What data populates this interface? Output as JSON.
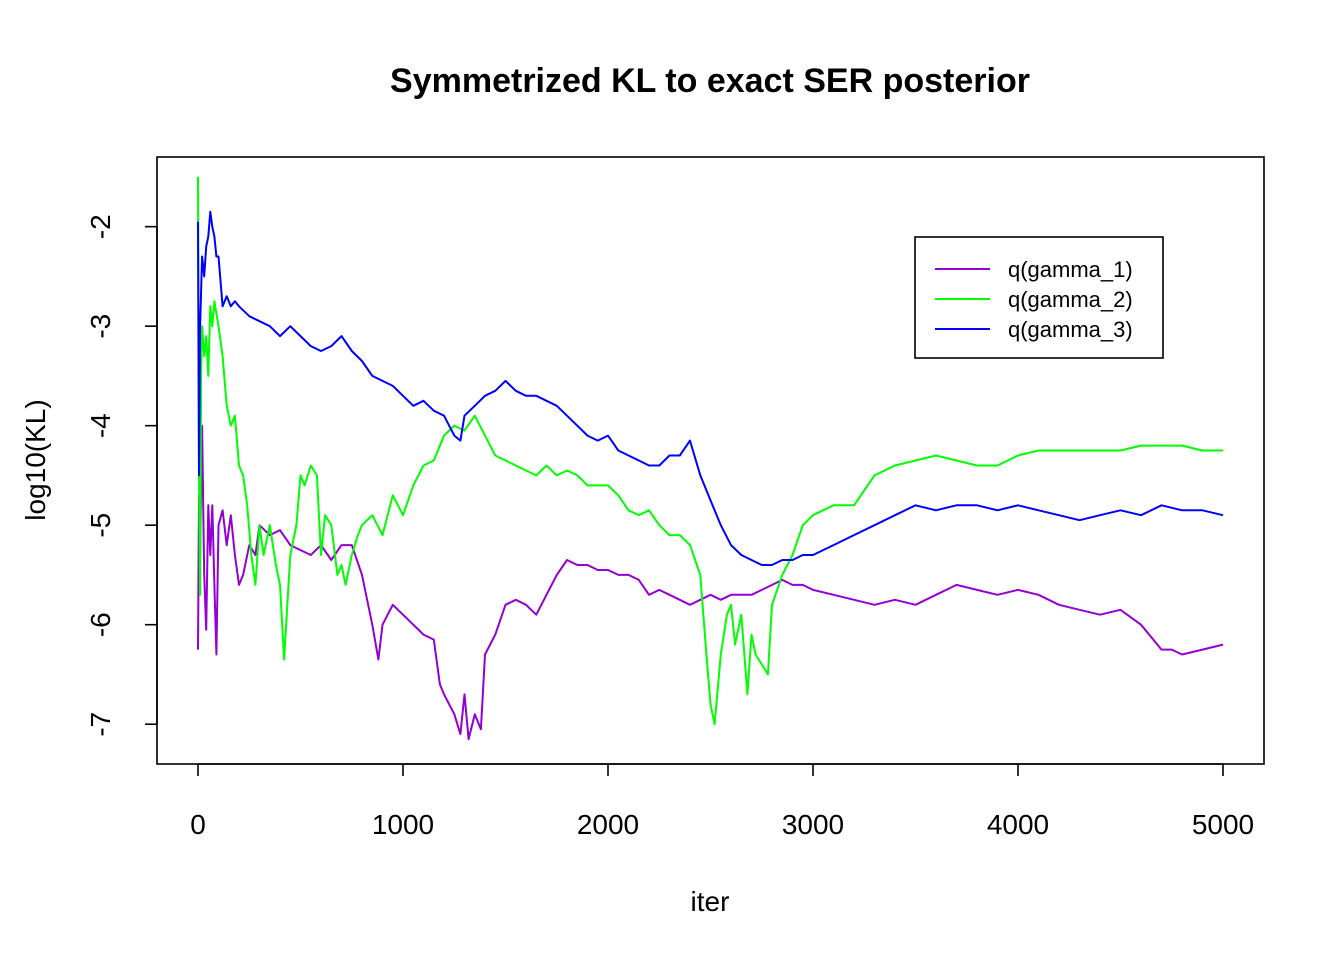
{
  "chart_data": {
    "type": "line",
    "title": "Symmetrized KL to exact SER posterior",
    "xlabel": "iter",
    "ylabel": "log10(KL)",
    "xlim": [
      -200,
      5200
    ],
    "ylim": [
      -7.4,
      -1.3
    ],
    "x_ticks": [
      0,
      1000,
      2000,
      3000,
      4000,
      5000
    ],
    "y_ticks": [
      -7,
      -6,
      -5,
      -4,
      -3,
      -2
    ],
    "x_tick_labels": [
      "0",
      "1000",
      "2000",
      "3000",
      "4000",
      "5000"
    ],
    "y_tick_labels": [
      "-7",
      "-6",
      "-5",
      "-4",
      "-3",
      "-2"
    ],
    "grid": false,
    "legend_position": "top-right",
    "series": [
      {
        "name": "q(gamma_1)",
        "color": "#9400D3",
        "x": [
          0,
          5,
          10,
          20,
          30,
          40,
          50,
          60,
          70,
          80,
          90,
          100,
          120,
          140,
          160,
          180,
          200,
          220,
          250,
          280,
          300,
          350,
          400,
          450,
          500,
          550,
          600,
          650,
          700,
          750,
          800,
          820,
          850,
          880,
          900,
          950,
          1000,
          1050,
          1100,
          1150,
          1180,
          1200,
          1250,
          1280,
          1300,
          1320,
          1350,
          1380,
          1400,
          1450,
          1500,
          1550,
          1600,
          1650,
          1700,
          1750,
          1800,
          1850,
          1900,
          1950,
          2000,
          2050,
          2100,
          2150,
          2200,
          2250,
          2300,
          2350,
          2400,
          2450,
          2500,
          2550,
          2600,
          2650,
          2700,
          2750,
          2800,
          2850,
          2900,
          2950,
          3000,
          3100,
          3200,
          3300,
          3400,
          3500,
          3600,
          3700,
          3800,
          3900,
          4000,
          4100,
          4200,
          4300,
          4400,
          4500,
          4600,
          4700,
          4750,
          4800,
          4900,
          5000
        ],
        "y": [
          -6.25,
          -4.7,
          -5.3,
          -4.0,
          -5.5,
          -6.05,
          -4.8,
          -5.3,
          -4.8,
          -5.6,
          -6.3,
          -5.0,
          -4.85,
          -5.2,
          -4.9,
          -5.3,
          -5.6,
          -5.5,
          -5.2,
          -5.3,
          -5.0,
          -5.1,
          -5.05,
          -5.2,
          -5.25,
          -5.3,
          -5.2,
          -5.35,
          -5.2,
          -5.2,
          -5.5,
          -5.7,
          -6.0,
          -6.35,
          -6.0,
          -5.8,
          -5.9,
          -6.0,
          -6.1,
          -6.15,
          -6.6,
          -6.7,
          -6.9,
          -7.1,
          -6.7,
          -7.15,
          -6.9,
          -7.05,
          -6.3,
          -6.1,
          -5.8,
          -5.75,
          -5.8,
          -5.9,
          -5.7,
          -5.5,
          -5.35,
          -5.4,
          -5.4,
          -5.45,
          -5.45,
          -5.5,
          -5.5,
          -5.55,
          -5.7,
          -5.65,
          -5.7,
          -5.75,
          -5.8,
          -5.75,
          -5.7,
          -5.75,
          -5.7,
          -5.7,
          -5.7,
          -5.65,
          -5.6,
          -5.55,
          -5.6,
          -5.6,
          -5.65,
          -5.7,
          -5.75,
          -5.8,
          -5.75,
          -5.8,
          -5.7,
          -5.6,
          -5.65,
          -5.7,
          -5.65,
          -5.7,
          -5.8,
          -5.85,
          -5.9,
          -5.85,
          -6.0,
          -6.25,
          -6.25,
          -6.3,
          -6.25,
          -6.2
        ]
      },
      {
        "name": "q(gamma_2)",
        "color": "#00FF00",
        "x": [
          0,
          5,
          10,
          15,
          20,
          30,
          40,
          50,
          60,
          70,
          80,
          100,
          120,
          140,
          160,
          180,
          200,
          220,
          240,
          260,
          280,
          300,
          320,
          350,
          380,
          400,
          420,
          450,
          480,
          500,
          520,
          550,
          580,
          600,
          620,
          650,
          680,
          700,
          720,
          750,
          780,
          800,
          850,
          900,
          950,
          1000,
          1050,
          1100,
          1150,
          1200,
          1250,
          1300,
          1350,
          1400,
          1450,
          1500,
          1550,
          1600,
          1650,
          1700,
          1750,
          1800,
          1850,
          1900,
          1950,
          2000,
          2050,
          2100,
          2150,
          2200,
          2250,
          2300,
          2350,
          2400,
          2450,
          2480,
          2500,
          2520,
          2550,
          2580,
          2600,
          2620,
          2650,
          2680,
          2700,
          2720,
          2750,
          2780,
          2800,
          2850,
          2900,
          2950,
          3000,
          3100,
          3200,
          3300,
          3400,
          3500,
          3600,
          3700,
          3800,
          3900,
          4000,
          4100,
          4200,
          4300,
          4400,
          4500,
          4600,
          4700,
          4800,
          4900,
          5000
        ],
        "y": [
          -1.5,
          -4.5,
          -5.7,
          -3.5,
          -3.0,
          -3.3,
          -3.1,
          -3.5,
          -2.8,
          -3.0,
          -2.75,
          -3.0,
          -3.3,
          -3.8,
          -4.0,
          -3.9,
          -4.4,
          -4.5,
          -4.8,
          -5.3,
          -5.6,
          -5.0,
          -5.3,
          -5.0,
          -5.4,
          -5.6,
          -6.35,
          -5.3,
          -5.0,
          -4.5,
          -4.6,
          -4.4,
          -4.5,
          -5.3,
          -4.9,
          -5.0,
          -5.5,
          -5.4,
          -5.6,
          -5.3,
          -5.1,
          -5.0,
          -4.9,
          -5.1,
          -4.7,
          -4.9,
          -4.6,
          -4.4,
          -4.35,
          -4.1,
          -4.0,
          -4.05,
          -3.9,
          -4.1,
          -4.3,
          -4.35,
          -4.4,
          -4.45,
          -4.5,
          -4.4,
          -4.5,
          -4.45,
          -4.5,
          -4.6,
          -4.6,
          -4.6,
          -4.7,
          -4.85,
          -4.9,
          -4.85,
          -5.0,
          -5.1,
          -5.1,
          -5.2,
          -5.5,
          -6.3,
          -6.8,
          -7.0,
          -6.3,
          -5.9,
          -5.8,
          -6.2,
          -5.9,
          -6.7,
          -6.1,
          -6.3,
          -6.4,
          -6.5,
          -5.8,
          -5.5,
          -5.3,
          -5.0,
          -4.9,
          -4.8,
          -4.8,
          -4.5,
          -4.4,
          -4.35,
          -4.3,
          -4.35,
          -4.4,
          -4.4,
          -4.3,
          -4.25,
          -4.25,
          -4.25,
          -4.25,
          -4.25,
          -4.2,
          -4.2,
          -4.2,
          -4.25,
          -4.25
        ]
      },
      {
        "name": "q(gamma_3)",
        "color": "#0000FF",
        "x": [
          0,
          5,
          10,
          20,
          30,
          40,
          50,
          60,
          70,
          80,
          90,
          100,
          120,
          140,
          160,
          180,
          200,
          250,
          300,
          350,
          400,
          450,
          500,
          550,
          600,
          650,
          700,
          750,
          800,
          850,
          900,
          950,
          1000,
          1050,
          1100,
          1150,
          1200,
          1250,
          1280,
          1300,
          1350,
          1400,
          1450,
          1500,
          1550,
          1600,
          1650,
          1700,
          1750,
          1800,
          1850,
          1900,
          1950,
          2000,
          2050,
          2100,
          2150,
          2200,
          2250,
          2300,
          2350,
          2400,
          2450,
          2500,
          2550,
          2600,
          2650,
          2700,
          2750,
          2800,
          2850,
          2900,
          2950,
          3000,
          3100,
          3200,
          3300,
          3400,
          3500,
          3600,
          3700,
          3800,
          3900,
          4000,
          4100,
          4200,
          4300,
          4400,
          4500,
          4600,
          4700,
          4800,
          4900,
          5000
        ],
        "y": [
          -1.95,
          -4.5,
          -3.0,
          -2.3,
          -2.5,
          -2.2,
          -2.1,
          -1.85,
          -2.0,
          -2.1,
          -2.3,
          -2.3,
          -2.8,
          -2.7,
          -2.8,
          -2.75,
          -2.8,
          -2.9,
          -2.95,
          -3.0,
          -3.1,
          -3.0,
          -3.1,
          -3.2,
          -3.25,
          -3.2,
          -3.1,
          -3.25,
          -3.35,
          -3.5,
          -3.55,
          -3.6,
          -3.7,
          -3.8,
          -3.75,
          -3.85,
          -3.9,
          -4.1,
          -4.15,
          -3.9,
          -3.8,
          -3.7,
          -3.65,
          -3.55,
          -3.65,
          -3.7,
          -3.7,
          -3.75,
          -3.8,
          -3.9,
          -4.0,
          -4.1,
          -4.15,
          -4.1,
          -4.25,
          -4.3,
          -4.35,
          -4.4,
          -4.4,
          -4.3,
          -4.3,
          -4.15,
          -4.5,
          -4.75,
          -5.0,
          -5.2,
          -5.3,
          -5.35,
          -5.4,
          -5.4,
          -5.35,
          -5.35,
          -5.3,
          -5.3,
          -5.2,
          -5.1,
          -5.0,
          -4.9,
          -4.8,
          -4.85,
          -4.8,
          -4.8,
          -4.85,
          -4.8,
          -4.85,
          -4.9,
          -4.95,
          -4.9,
          -4.85,
          -4.9,
          -4.8,
          -4.85,
          -4.85,
          -4.9
        ]
      }
    ]
  }
}
